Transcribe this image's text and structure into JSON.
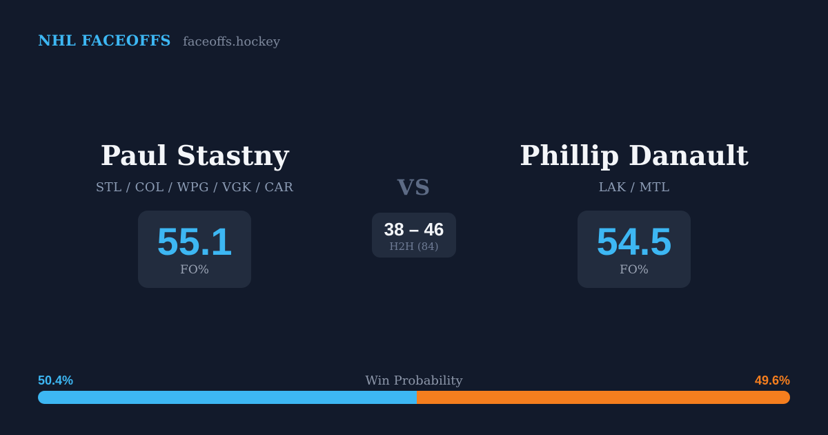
{
  "brand": {
    "title": "NHL FACEOFFS",
    "domain": "faceoffs.hockey"
  },
  "players": {
    "left": {
      "name": "Paul Stastny",
      "teams": "STL / COL / WPG / VGK / CAR",
      "fo_pct": "55.1",
      "fo_label": "FO%"
    },
    "right": {
      "name": "Phillip Danault",
      "teams": "LAK / MTL",
      "fo_pct": "54.5",
      "fo_label": "FO%"
    }
  },
  "center": {
    "vs": "VS",
    "h2h_score": "38 – 46",
    "h2h_label": "H2H (84)"
  },
  "win_probability": {
    "label": "Win Probability",
    "left_pct": "50.4%",
    "right_pct": "49.6%",
    "left_value": 50.4,
    "right_value": 49.6
  },
  "colors": {
    "background": "#121a2b",
    "card": "#222c3e",
    "accent_blue": "#3db7f3",
    "accent_orange": "#f57e1e",
    "text_white": "#f4f6f9"
  }
}
